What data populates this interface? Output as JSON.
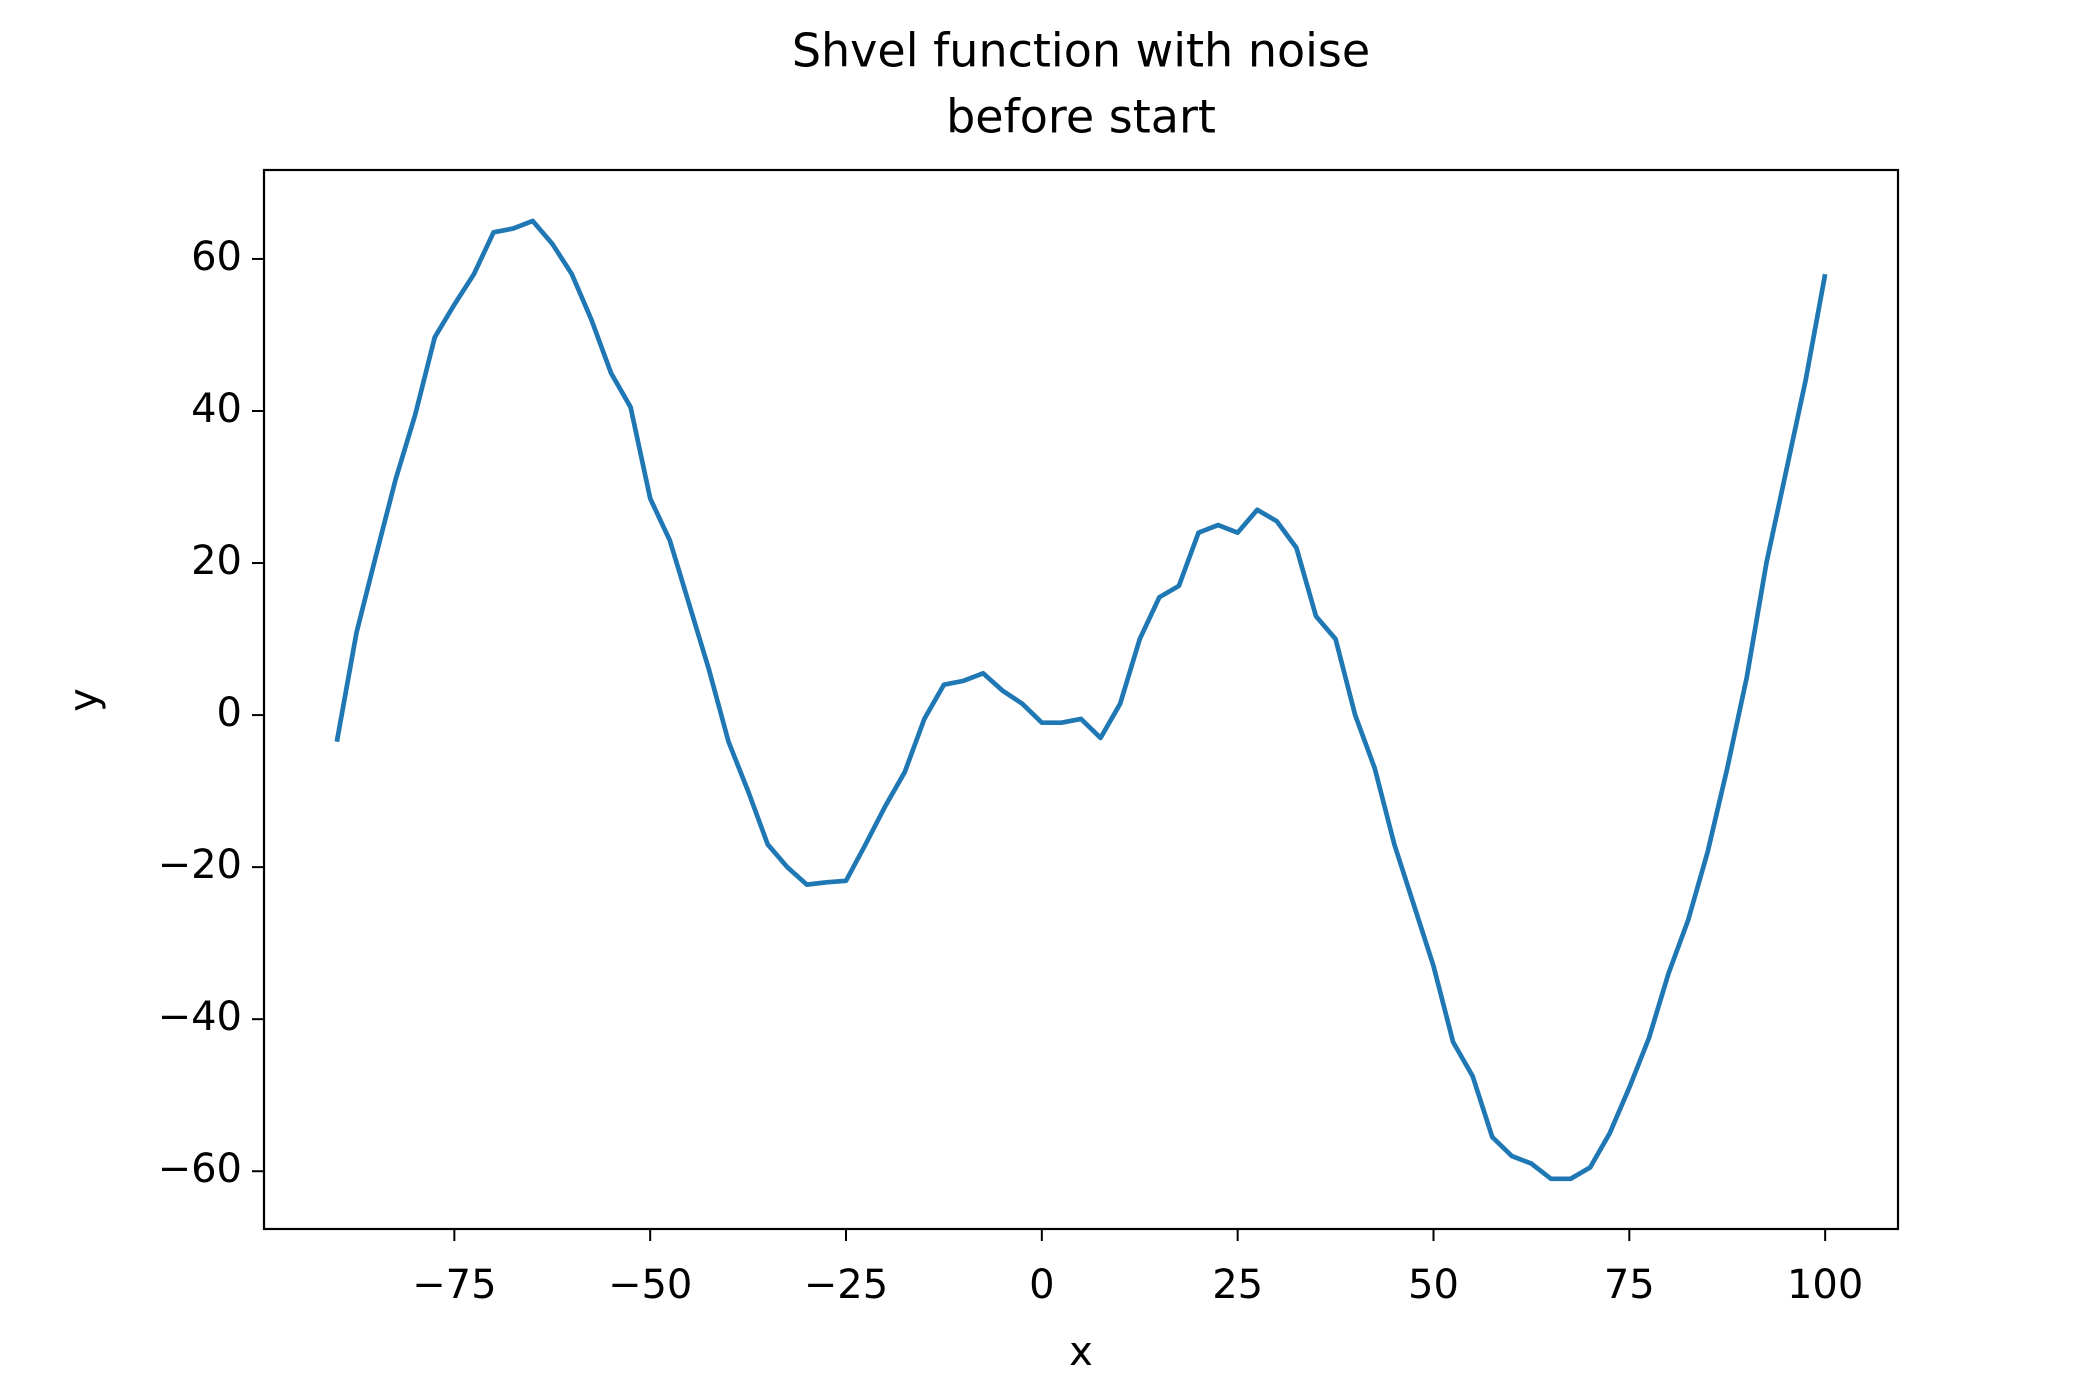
{
  "chart_data": {
    "type": "line",
    "title": "Shvel function with noise",
    "subtitle": "before start",
    "x_label": "x",
    "y_label": "y",
    "color": "#1f77b4",
    "subtitle_color": "#ff0000",
    "x": [
      -90,
      -87.5,
      -85,
      -82.5,
      -80,
      -77.5,
      -75,
      -72.5,
      -70,
      -67.5,
      -65,
      -62.5,
      -60,
      -57.5,
      -55,
      -52.5,
      -50,
      -47.5,
      -45,
      -42.5,
      -40,
      -37.5,
      -35,
      -32.5,
      -30,
      -27.5,
      -25,
      -22.5,
      -20,
      -17.5,
      -15,
      -12.5,
      -10,
      -7.5,
      -5,
      -2.5,
      0,
      2.5,
      5,
      7.5,
      10,
      12.5,
      15,
      17.5,
      20,
      22.5,
      25,
      27.5,
      30,
      32.5,
      35,
      37.5,
      40,
      42.5,
      45,
      47.5,
      50,
      52.5,
      55,
      57.5,
      60,
      62.5,
      65,
      67.5,
      70,
      72.5,
      75,
      77.5,
      80,
      82.5,
      85,
      87.5,
      90,
      92.5,
      95,
      97.5,
      100
    ],
    "values": [
      -3.5,
      10.8,
      21,
      31,
      39.5,
      49.7,
      54,
      58,
      63.5,
      64,
      65,
      62,
      58,
      52,
      45,
      40.5,
      28.5,
      23,
      14.5,
      6,
      -3.5,
      -10,
      -17,
      -20,
      -22.3,
      -22,
      -21.8,
      -17,
      -12,
      -7.5,
      -0.5,
      4,
      4.5,
      5.5,
      3.2,
      1.5,
      -1,
      -1,
      -0.5,
      -3,
      1.5,
      10,
      15.5,
      17,
      24,
      25,
      24,
      27,
      25.5,
      22,
      13,
      10,
      0,
      -7,
      -17,
      -25,
      -33,
      -43,
      -47.5,
      -55.5,
      -58,
      -59,
      -61,
      -61,
      -59.5,
      -55,
      -49,
      -42.5,
      -34,
      -27,
      -18,
      -7,
      5,
      20,
      32,
      44,
      58
    ],
    "xlim": [
      -99.3,
      109.3
    ],
    "ylim": [
      -67.6,
      71.7
    ],
    "xticks": [
      {
        "value": -75,
        "label": "−75"
      },
      {
        "value": -50,
        "label": "−50"
      },
      {
        "value": -25,
        "label": "−25"
      },
      0,
      25,
      50,
      75,
      100
    ],
    "yticks": [
      {
        "value": -60,
        "label": "−60"
      },
      {
        "value": -40,
        "label": "−40"
      },
      {
        "value": -20,
        "label": "−20"
      },
      0,
      20,
      40,
      60
    ]
  }
}
